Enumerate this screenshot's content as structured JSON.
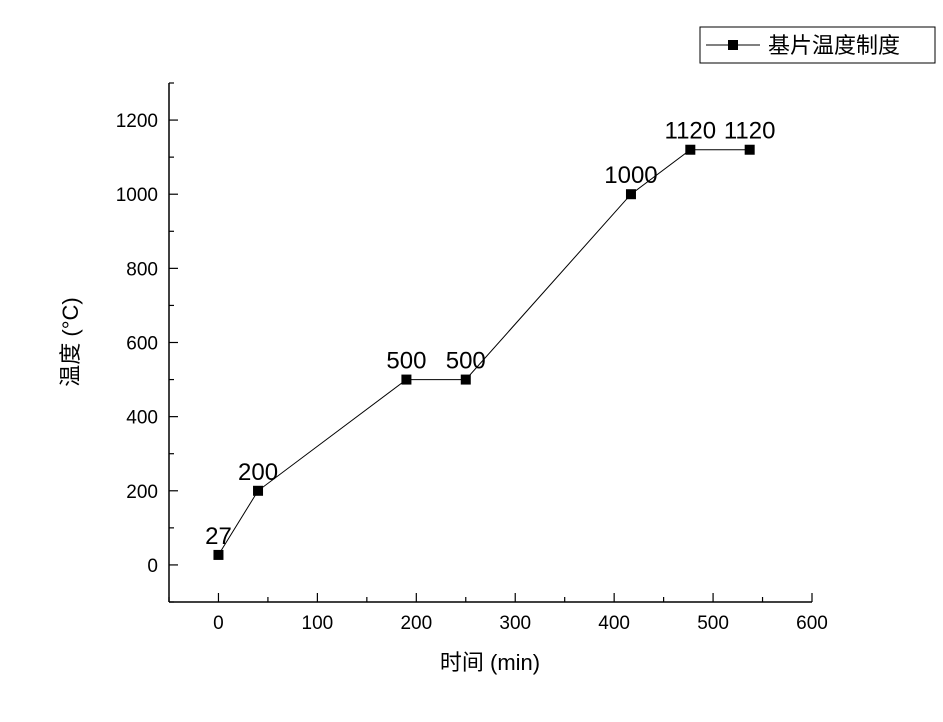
{
  "chart_data": {
    "type": "line",
    "title": "",
    "xlabel": "时间 (min)",
    "ylabel": "温度 (°C)",
    "xlim": [
      -50,
      600
    ],
    "ylim": [
      -100,
      1300
    ],
    "x_ticks": [
      0,
      100,
      200,
      300,
      400,
      500,
      600
    ],
    "y_ticks": [
      0,
      200,
      400,
      600,
      800,
      1000,
      1200
    ],
    "grid": false,
    "legend_position": "top-right",
    "series": [
      {
        "name": "基片温度制度",
        "marker": "square",
        "color": "#000000",
        "x": [
          0,
          40,
          190,
          250,
          417,
          477,
          537
        ],
        "y": [
          27,
          200,
          500,
          500,
          1000,
          1120,
          1120
        ],
        "labels": [
          "27",
          "200",
          "500",
          "500",
          "1000",
          "1120",
          "1120"
        ]
      }
    ]
  }
}
